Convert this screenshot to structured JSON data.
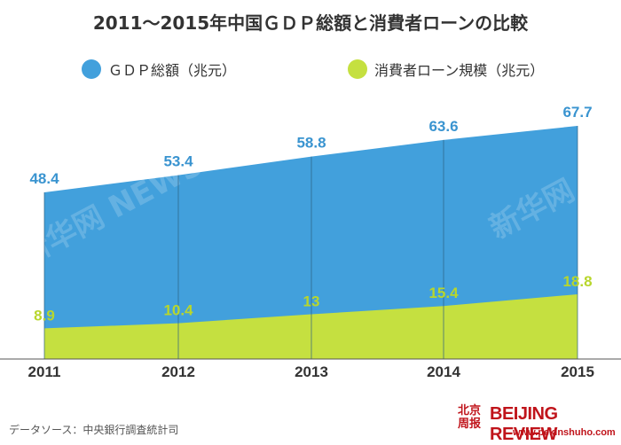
{
  "title": "2011〜2015年中国ＧＤＰ総額と消費者ローンの比較",
  "source": "データソース：中央銀行調査統計司",
  "logo": {
    "cn_line1": "北京",
    "cn_line2": "周报",
    "en": "BEIJING REVIEW",
    "url": "www.pekinshuho.com"
  },
  "watermark": "新华网 NEWS.CN",
  "colors": {
    "gdp": "#42a0dc",
    "loan": "#c5e040",
    "gdp_label": "#3a94d0",
    "loan_label": "#b8d62c",
    "axis": "#555555"
  },
  "chart_data": {
    "type": "area",
    "categories": [
      "2011",
      "2012",
      "2013",
      "2014",
      "2015"
    ],
    "series": [
      {
        "name": "ＧＤＰ総額（兆元）",
        "values": [
          48.4,
          53.4,
          58.8,
          63.6,
          67.7
        ],
        "labels": [
          "48.4",
          "53.4",
          "58.8",
          "63.6",
          "67.7"
        ]
      },
      {
        "name": "消費者ローン規模（兆元）",
        "values": [
          8.9,
          10.4,
          13,
          15.4,
          18.8
        ],
        "labels": [
          "8.9",
          "10.4",
          "13",
          "15.4",
          "18.8"
        ]
      }
    ],
    "ylim": [
      0,
      67.7
    ],
    "legend": "top"
  }
}
